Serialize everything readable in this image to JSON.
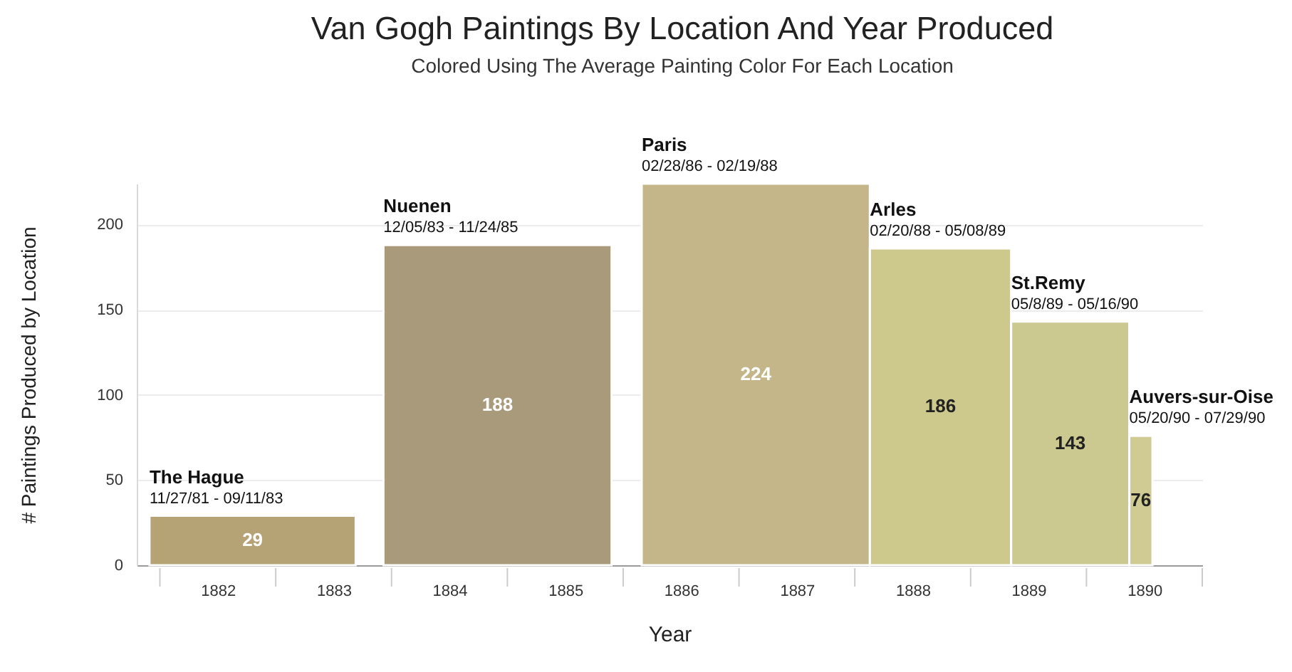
{
  "chart_data": {
    "type": "histogram",
    "title": "Van Gogh Paintings By Location And Year Produced",
    "subtitle": "Colored Using The Average Painting Color For Each Location",
    "xlabel": "Year",
    "ylabel": "# Paintings Produced by Location",
    "bins": [
      1881.91,
      1883.69,
      1883.93,
      1885.9,
      1886.16,
      1888.13,
      1889.35,
      1890.37,
      1890.57
    ],
    "values": [
      29,
      null,
      188,
      null,
      224,
      186,
      143,
      76
    ],
    "colors": [
      "#b5a275",
      null,
      "#a89a7a",
      null,
      "#c5b68a",
      "#cdc98d",
      "#cbc890",
      "#cfcb93"
    ],
    "data_labels": true,
    "xlim": [
      1881.8,
      1891
    ],
    "xticks": [
      {
        "value": 1882,
        "label": null
      },
      {
        "value": 1882.5,
        "label": "1882"
      },
      {
        "value": 1883,
        "label": null
      },
      {
        "value": 1883.5,
        "label": "1883"
      },
      {
        "value": 1884,
        "label": null
      },
      {
        "value": 1884.5,
        "label": "1884"
      },
      {
        "value": 1885,
        "label": null
      },
      {
        "value": 1885.5,
        "label": "1885"
      },
      {
        "value": 1886,
        "label": null
      },
      {
        "value": 1886.5,
        "label": "1886"
      },
      {
        "value": 1887,
        "label": null
      },
      {
        "value": 1887.5,
        "label": "1887"
      },
      {
        "value": 1888,
        "label": null
      },
      {
        "value": 1888.5,
        "label": "1888"
      },
      {
        "value": 1889,
        "label": null
      },
      {
        "value": 1889.5,
        "label": "1889"
      },
      {
        "value": 1890,
        "label": null
      },
      {
        "value": 1890.5,
        "label": "1890"
      },
      {
        "value": 1891,
        "label": null
      }
    ],
    "ylim": [
      0,
      224
    ],
    "yticks": [
      0,
      50,
      100,
      150,
      200
    ],
    "grid": "y",
    "annotations": [
      {
        "text": "The Hague",
        "x": 1881.91,
        "y": 29
      },
      {
        "text": "11/27/81 - 09/11/83",
        "x": 1881.91,
        "y": 29
      },
      {
        "text": "Nuenen",
        "x": 1883.93,
        "y": 188
      },
      {
        "text": "12/05/83 - 11/24/85",
        "x": 1883.93,
        "y": 188
      },
      {
        "text": "Paris",
        "x": 1886.16,
        "y": 224
      },
      {
        "text": "02/28/86 - 02/19/88",
        "x": 1886.16,
        "y": 224
      },
      {
        "text": "Arles",
        "x": 1888.13,
        "y": 186
      },
      {
        "text": "02/20/88 - 05/08/89",
        "x": 1888.13,
        "y": 186
      },
      {
        "text": "St.Remy",
        "x": 1889.35,
        "y": 143
      },
      {
        "text": "05/8/89 - 05/16/90",
        "x": 1889.35,
        "y": 143
      },
      {
        "text": "Auvers-sur-Oise",
        "x": 1890.37,
        "y": 76
      },
      {
        "text": "05/20/90 - 07/29/90",
        "x": 1890.37,
        "y": 76
      }
    ]
  }
}
